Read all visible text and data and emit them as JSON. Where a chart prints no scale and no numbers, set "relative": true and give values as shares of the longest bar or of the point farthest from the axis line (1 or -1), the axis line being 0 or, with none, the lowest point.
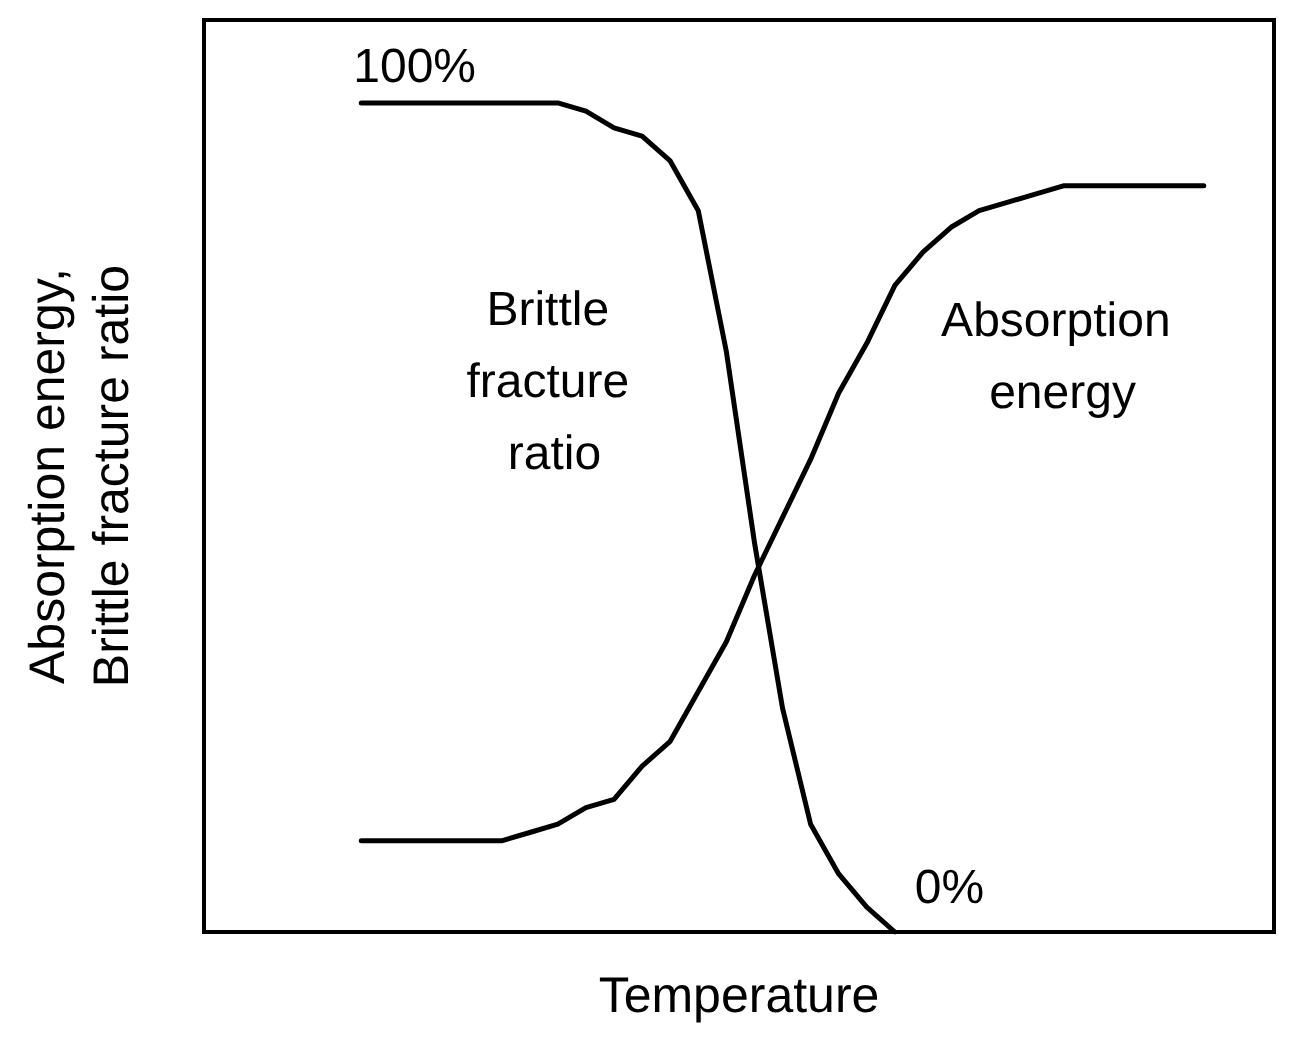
{
  "chart_data": {
    "type": "line",
    "relative": true,
    "xlabel": "Temperature",
    "ylabel": "Absorption energy,\nBrittle fracture ratio",
    "categories": [
      null,
      null,
      null,
      null,
      null,
      null,
      null,
      null,
      null,
      null,
      null,
      null,
      null,
      null,
      null,
      null,
      null,
      null,
      null,
      null,
      null,
      null,
      null,
      null,
      null,
      null,
      null,
      null,
      null,
      null,
      null
    ],
    "series": [
      {
        "name": "Brittle fracture ratio",
        "color": "#000000",
        "values": [
          1,
          1,
          1,
          1,
          1,
          1,
          1,
          1,
          0.99,
          0.97,
          0.96,
          0.93,
          0.87,
          0.7,
          0.47,
          0.27,
          0.13,
          0.07,
          0.03,
          0,
          null,
          null,
          null,
          null,
          null,
          null,
          null,
          null,
          null,
          null,
          null
        ]
      },
      {
        "name": "Absorption energy",
        "color": "#000000",
        "values": [
          0.11,
          0.11,
          0.11,
          0.11,
          0.11,
          0.11,
          0.12,
          0.13,
          0.15,
          0.16,
          0.2,
          0.23,
          0.29,
          0.35,
          0.43,
          0.5,
          0.57,
          0.65,
          0.71,
          0.78,
          0.82,
          0.85,
          0.87,
          0.88,
          0.89,
          0.9,
          0.9,
          0.9,
          0.9,
          0.9,
          0.9
        ]
      }
    ],
    "annotations": [
      "100%",
      "0%"
    ]
  }
}
